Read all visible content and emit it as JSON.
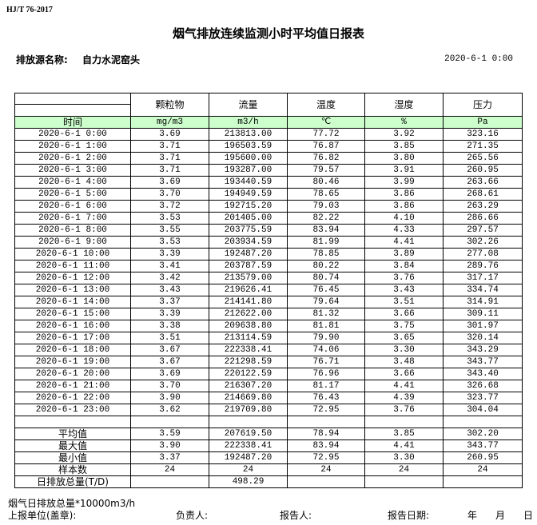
{
  "standard": "HJ/T  76-2017",
  "title": "烟气排放连续监测小时平均值日报表",
  "source_label": "排放源名称:",
  "source_value": "自力水泥窑头",
  "report_datetime": "2020-6-1 0:00",
  "table": {
    "headers": [
      "颗粒物",
      "流量",
      "温度",
      "湿度",
      "压力"
    ],
    "time_header": "时间",
    "units": [
      "mg/m3",
      "m3/h",
      "℃",
      "%",
      "Pa"
    ],
    "header_bg": "#ccffcc",
    "rows": [
      [
        "2020-6-1 0:00",
        "3.69",
        "213813.00",
        "77.72",
        "3.92",
        "323.16"
      ],
      [
        "2020-6-1 1:00",
        "3.71",
        "196503.59",
        "76.87",
        "3.85",
        "271.35"
      ],
      [
        "2020-6-1 2:00",
        "3.71",
        "195600.00",
        "76.82",
        "3.80",
        "265.56"
      ],
      [
        "2020-6-1 3:00",
        "3.71",
        "193287.00",
        "79.57",
        "3.91",
        "260.95"
      ],
      [
        "2020-6-1 4:00",
        "3.69",
        "193440.59",
        "80.46",
        "3.99",
        "263.66"
      ],
      [
        "2020-6-1 5:00",
        "3.70",
        "194949.59",
        "78.65",
        "3.86",
        "268.61"
      ],
      [
        "2020-6-1 6:00",
        "3.72",
        "192715.20",
        "79.03",
        "3.86",
        "263.29"
      ],
      [
        "2020-6-1 7:00",
        "3.53",
        "201405.00",
        "82.22",
        "4.10",
        "286.66"
      ],
      [
        "2020-6-1 8:00",
        "3.55",
        "203775.59",
        "83.94",
        "4.33",
        "297.57"
      ],
      [
        "2020-6-1 9:00",
        "3.53",
        "203934.59",
        "81.99",
        "4.41",
        "302.26"
      ],
      [
        "2020-6-1 10:00",
        "3.39",
        "192487.20",
        "78.85",
        "3.89",
        "277.08"
      ],
      [
        "2020-6-1 11:00",
        "3.41",
        "203787.59",
        "80.22",
        "3.84",
        "289.76"
      ],
      [
        "2020-6-1 12:00",
        "3.42",
        "213579.00",
        "80.74",
        "3.76",
        "317.17"
      ],
      [
        "2020-6-1 13:00",
        "3.43",
        "219626.41",
        "76.45",
        "3.43",
        "334.74"
      ],
      [
        "2020-6-1 14:00",
        "3.37",
        "214141.80",
        "79.64",
        "3.51",
        "314.91"
      ],
      [
        "2020-6-1 15:00",
        "3.39",
        "212622.00",
        "81.32",
        "3.66",
        "309.11"
      ],
      [
        "2020-6-1 16:00",
        "3.38",
        "209638.80",
        "81.81",
        "3.75",
        "301.97"
      ],
      [
        "2020-6-1 17:00",
        "3.51",
        "213114.59",
        "79.90",
        "3.65",
        "320.14"
      ],
      [
        "2020-6-1 18:00",
        "3.67",
        "222338.41",
        "74.06",
        "3.30",
        "343.29"
      ],
      [
        "2020-6-1 19:00",
        "3.67",
        "221298.59",
        "76.71",
        "3.48",
        "343.77"
      ],
      [
        "2020-6-1 20:00",
        "3.69",
        "220122.59",
        "76.96",
        "3.66",
        "343.40"
      ],
      [
        "2020-6-1 21:00",
        "3.70",
        "216307.20",
        "81.17",
        "4.41",
        "326.68"
      ],
      [
        "2020-6-1 22:00",
        "3.90",
        "214669.80",
        "76.43",
        "4.39",
        "323.77"
      ],
      [
        "2020-6-1 23:00",
        "3.62",
        "219709.80",
        "72.95",
        "3.76",
        "304.04"
      ]
    ],
    "summary": [
      [
        "平均值",
        "3.59",
        "207619.50",
        "78.94",
        "3.85",
        "302.20"
      ],
      [
        "最大值",
        "3.90",
        "222338.41",
        "83.94",
        "4.41",
        "343.77"
      ],
      [
        "最小值",
        "3.37",
        "192487.20",
        "72.95",
        "3.30",
        "260.95"
      ],
      [
        "样本数",
        "24",
        "24",
        "24",
        "24",
        "24"
      ],
      [
        "日排放总量(T/D)",
        "",
        "498.29",
        "",
        "",
        ""
      ]
    ]
  },
  "footer": {
    "note": "烟气日排放总量*10000m3/h",
    "unit_label": "上报单位(盖章):",
    "responsible_label": "负责人:",
    "reporter_label": "报告人:",
    "date_label": "报告日期:",
    "year": "年",
    "month": "月",
    "day": "日"
  }
}
